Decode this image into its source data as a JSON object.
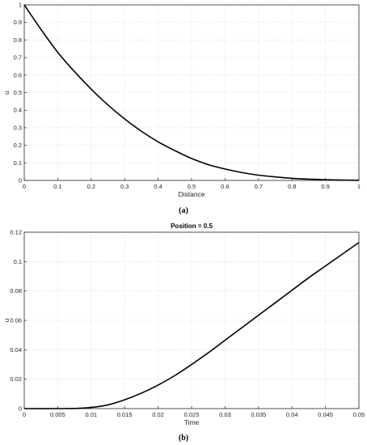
{
  "chart_data": [
    {
      "type": "line",
      "title": "",
      "xlabel": "Distance",
      "ylabel": "u",
      "xlim": [
        0,
        1
      ],
      "ylim": [
        0,
        1
      ],
      "xticks": [
        "0",
        "0.1",
        "0.2",
        "0.3",
        "0.4",
        "0.5",
        "0.6",
        "0.7",
        "0.8",
        "0.9",
        "1"
      ],
      "yticks": [
        "0",
        "0.1",
        "0.2",
        "0.3",
        "0.4",
        "0.5",
        "0.6",
        "0.7",
        "0.8",
        "0.9",
        "1"
      ],
      "grid": true,
      "caption": "(a)",
      "series": [
        {
          "x": [
            0,
            0.05,
            0.1,
            0.15,
            0.2,
            0.25,
            0.3,
            0.35,
            0.4,
            0.45,
            0.5,
            0.55,
            0.6,
            0.65,
            0.7,
            0.75,
            0.8,
            0.85,
            0.9,
            0.95,
            1
          ],
          "y": [
            1,
            0.86,
            0.73,
            0.62,
            0.52,
            0.43,
            0.35,
            0.28,
            0.22,
            0.17,
            0.125,
            0.09,
            0.065,
            0.045,
            0.03,
            0.02,
            0.012,
            0.007,
            0.004,
            0.002,
            0.001
          ]
        }
      ]
    },
    {
      "type": "line",
      "title": "Position = 0.5",
      "xlabel": "Time",
      "ylabel": "u",
      "xlim": [
        0,
        0.05
      ],
      "ylim": [
        0,
        0.12
      ],
      "xticks": [
        "0",
        "0.005",
        "0.01",
        "0.015",
        "0.02",
        "0.025",
        "0.03",
        "0.035",
        "0.04",
        "0.045",
        "0.05"
      ],
      "yticks": [
        "0",
        "0.02",
        "0.04",
        "0.06",
        "0.08",
        "0.1",
        "0.12"
      ],
      "grid": true,
      "caption": "(b)",
      "series": [
        {
          "x": [
            0,
            0.005,
            0.008,
            0.01,
            0.0125,
            0.015,
            0.0175,
            0.02,
            0.0225,
            0.025,
            0.0275,
            0.03,
            0.0325,
            0.035,
            0.0375,
            0.04,
            0.0425,
            0.045,
            0.0475,
            0.05
          ],
          "y": [
            0,
            0,
            0.0002,
            0.0008,
            0.0025,
            0.006,
            0.0105,
            0.016,
            0.0225,
            0.03,
            0.038,
            0.0465,
            0.055,
            0.0635,
            0.072,
            0.0805,
            0.089,
            0.097,
            0.105,
            0.113
          ]
        }
      ]
    }
  ]
}
